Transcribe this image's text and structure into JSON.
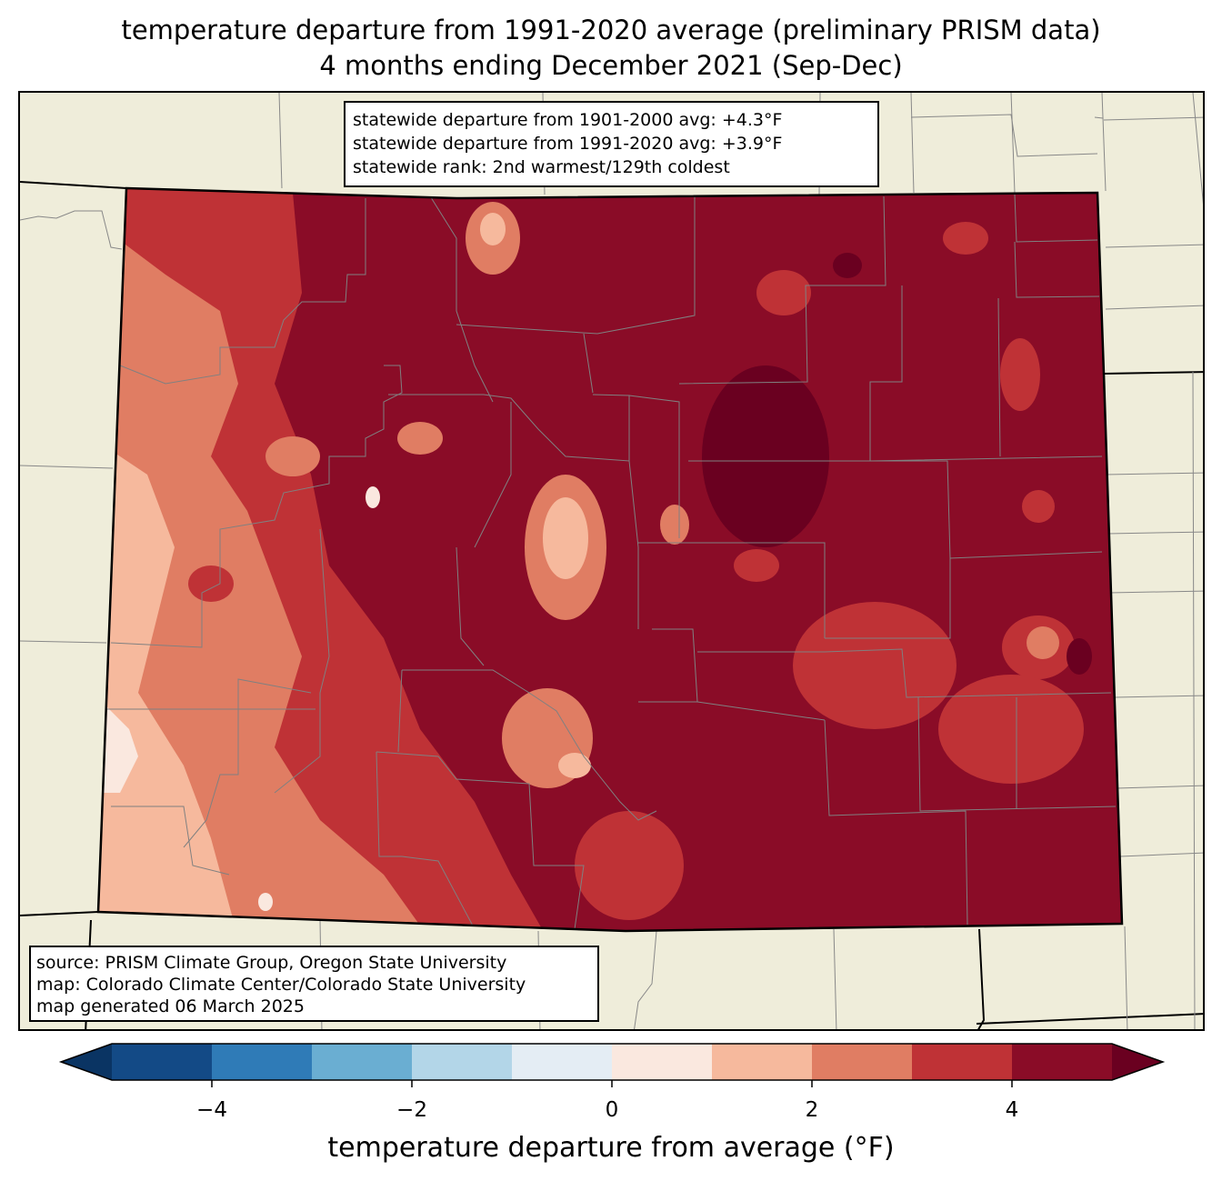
{
  "title": {
    "line1": "temperature departure from 1991-2020 average (preliminary PRISM data)",
    "line2": "4 months ending December 2021 (Sep-Dec)"
  },
  "stats": {
    "line1": "statewide departure from 1901-2000 avg: +4.3°F",
    "line2": "statewide departure from 1991-2020 avg: +3.9°F",
    "line3": "statewide rank: 2nd warmest/129th coldest"
  },
  "source": {
    "line1": "source: PRISM Climate Group, Oregon State University",
    "line2": "map: Colorado Climate Center/Colorado State University",
    "line3": "map generated 06 March 2025"
  },
  "colorbar": {
    "label": "temperature departure from average (°F)",
    "bins": [
      {
        "from": -5,
        "to": -4,
        "color": "#134a86"
      },
      {
        "from": -4,
        "to": -3,
        "color": "#2f7bb7"
      },
      {
        "from": -3,
        "to": -2,
        "color": "#6aaed2"
      },
      {
        "from": -2,
        "to": -1,
        "color": "#b3d6e8"
      },
      {
        "from": -1,
        "to": 0,
        "color": "#e4edf4"
      },
      {
        "from": 0,
        "to": 1,
        "color": "#fae8df"
      },
      {
        "from": 1,
        "to": 2,
        "color": "#f6b99d"
      },
      {
        "from": 2,
        "to": 3,
        "color": "#e07d63"
      },
      {
        "from": 3,
        "to": 4,
        "color": "#bf3236"
      },
      {
        "from": 4,
        "to": 5,
        "color": "#8a0c27"
      }
    ],
    "under_color": "#0a3463",
    "over_color": "#6a0020",
    "ticks": [
      "−4",
      "−2",
      "0",
      "2",
      "4"
    ],
    "tick_values": [
      -4,
      -2,
      0,
      2,
      4
    ]
  },
  "map": {
    "background_color": "#efedda",
    "state_border_color": "#000000",
    "county_line_color": "#808080"
  }
}
